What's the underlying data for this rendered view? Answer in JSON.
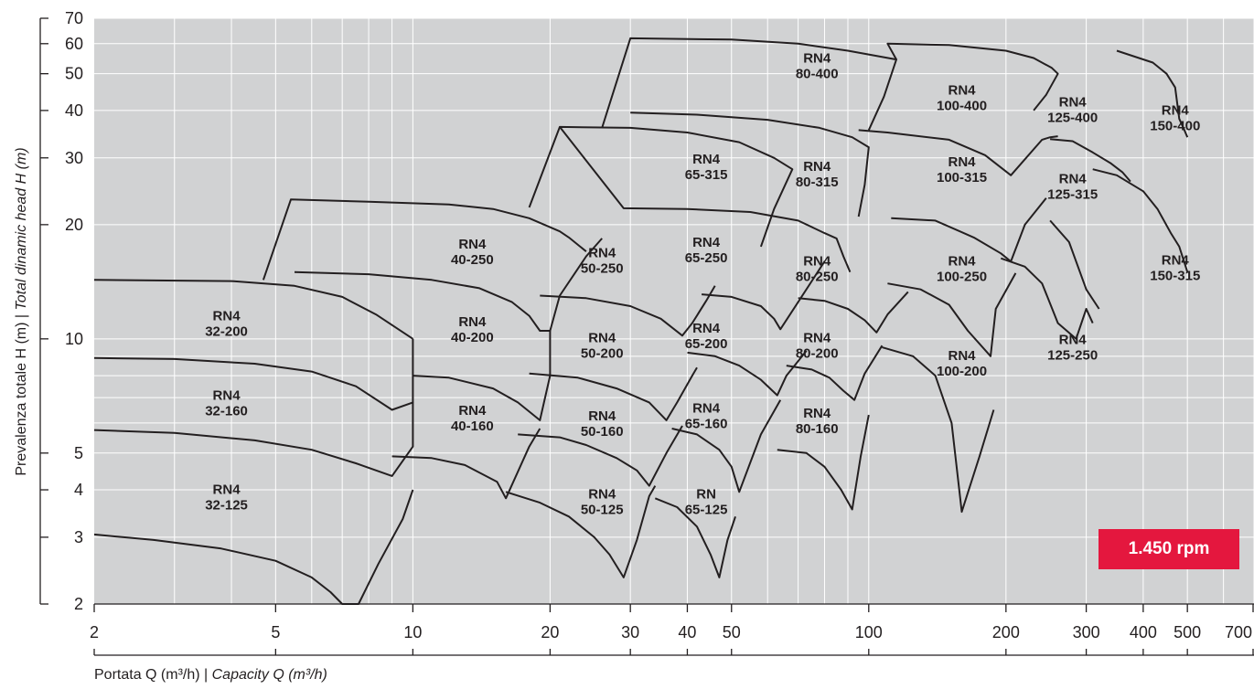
{
  "chart_data": {
    "type": "area",
    "title": "",
    "ylabel_it": "Prevalenza totale H (m)",
    "ylabel_en": "Total dinamic head H (m)",
    "xlabel_it": "Portata Q (m³/h)",
    "xlabel_en": "Capacity Q (m³/h)",
    "xscale": "log",
    "yscale": "log",
    "xlim": [
      2,
      700
    ],
    "ylim": [
      2,
      70
    ],
    "xticks": [
      2,
      5,
      10,
      20,
      30,
      40,
      50,
      100,
      200,
      300,
      400,
      500,
      700
    ],
    "yticks": [
      2,
      3,
      4,
      5,
      10,
      20,
      30,
      40,
      50,
      60,
      70
    ],
    "grid": true,
    "speed_label": "1.450 rpm",
    "regions": [
      {
        "name": "RN4\n32-125",
        "label_at": [
          3.9,
          3.9
        ],
        "outline": [
          [
            2,
            3.05
          ],
          [
            2.7,
            2.95
          ],
          [
            3.8,
            2.8
          ],
          [
            5,
            2.6
          ],
          [
            6,
            2.35
          ],
          [
            6.6,
            2.15
          ],
          [
            7,
            2
          ],
          [
            7.6,
            2
          ],
          [
            8.4,
            2.55
          ],
          [
            9.5,
            3.35
          ],
          [
            10,
            4
          ]
        ]
      },
      {
        "name": "RN4\n32-160",
        "label_at": [
          3.9,
          6.9
        ],
        "outline": [
          [
            2,
            5.75
          ],
          [
            3,
            5.65
          ],
          [
            4.5,
            5.4
          ],
          [
            6,
            5.1
          ],
          [
            7.5,
            4.7
          ],
          [
            9,
            4.35
          ],
          [
            10,
            5.2
          ],
          [
            10,
            6.8
          ]
        ]
      },
      {
        "name": "RN4\n32-200",
        "label_at": [
          3.9,
          11.2
        ],
        "outline": [
          [
            2,
            8.9
          ],
          [
            3,
            8.85
          ],
          [
            4.5,
            8.6
          ],
          [
            6,
            8.2
          ],
          [
            7.5,
            7.5
          ],
          [
            9,
            6.5
          ],
          [
            10,
            6.8
          ],
          [
            10,
            10
          ]
        ]
      },
      {
        "name": "",
        "label_at": [
          0,
          0
        ],
        "outline": [
          [
            2,
            14.3
          ],
          [
            4,
            14.2
          ],
          [
            5.5,
            13.8
          ],
          [
            7,
            12.9
          ],
          [
            8.3,
            11.6
          ],
          [
            10,
            10
          ]
        ]
      },
      {
        "name": "RN4\n40-160",
        "label_at": [
          13.5,
          6.3
        ],
        "outline": [
          [
            9,
            4.9
          ],
          [
            11,
            4.85
          ],
          [
            13,
            4.65
          ],
          [
            15.3,
            4.2
          ],
          [
            16,
            3.8
          ],
          [
            18,
            5.2
          ],
          [
            19,
            5.8
          ]
        ]
      },
      {
        "name": "RN4\n40-200",
        "label_at": [
          13.5,
          10.8
        ],
        "outline": [
          [
            10,
            8
          ],
          [
            12,
            7.9
          ],
          [
            15,
            7.4
          ],
          [
            17,
            6.8
          ],
          [
            19,
            6.1
          ],
          [
            20,
            8
          ],
          [
            20,
            10.5
          ]
        ]
      },
      {
        "name": "RN4\n40-250",
        "label_at": [
          13.5,
          17.3
        ],
        "outline": [
          [
            5.5,
            15
          ],
          [
            8,
            14.8
          ],
          [
            11,
            14.3
          ],
          [
            14,
            13.6
          ],
          [
            16.5,
            12.5
          ],
          [
            18,
            11.5
          ],
          [
            19,
            10.5
          ],
          [
            20,
            10.5
          ],
          [
            21,
            13
          ],
          [
            24,
            16.5
          ],
          [
            26,
            18.4
          ]
        ]
      },
      {
        "name": "",
        "label_at": [
          0,
          0
        ],
        "outline": [
          [
            4.7,
            14.3
          ],
          [
            5.4,
            23.3
          ],
          [
            8,
            23
          ],
          [
            12,
            22.6
          ],
          [
            15,
            22
          ],
          [
            18,
            20.8
          ],
          [
            21,
            19.2
          ],
          [
            22,
            18.5
          ],
          [
            24,
            17
          ]
        ]
      },
      {
        "name": "RN4\n50-125",
        "label_at": [
          26,
          3.8
        ],
        "outline": [
          [
            16,
            3.95
          ],
          [
            19,
            3.7
          ],
          [
            22,
            3.4
          ],
          [
            25,
            3
          ],
          [
            27,
            2.7
          ],
          [
            29,
            2.35
          ],
          [
            31,
            2.95
          ],
          [
            33,
            3.85
          ],
          [
            34,
            4.1
          ]
        ]
      },
      {
        "name": "RN4\n50-160",
        "label_at": [
          26,
          6.1
        ],
        "outline": [
          [
            17,
            5.6
          ],
          [
            21,
            5.5
          ],
          [
            24,
            5.25
          ],
          [
            28,
            4.85
          ],
          [
            31,
            4.5
          ],
          [
            33,
            4.1
          ],
          [
            36,
            5
          ],
          [
            39,
            5.9
          ]
        ]
      },
      {
        "name": "RN4\n50-200",
        "label_at": [
          26,
          9.8
        ],
        "outline": [
          [
            18,
            8.1
          ],
          [
            23,
            7.9
          ],
          [
            28,
            7.4
          ],
          [
            33,
            6.8
          ],
          [
            36,
            6.1
          ],
          [
            38,
            6.8
          ],
          [
            41,
            8
          ],
          [
            42,
            8.4
          ]
        ]
      },
      {
        "name": "RN4\n50-250",
        "label_at": [
          26,
          16.4
        ],
        "outline": [
          [
            19,
            13
          ],
          [
            24,
            12.8
          ],
          [
            30,
            12.2
          ],
          [
            35,
            11.3
          ],
          [
            39,
            10.2
          ],
          [
            41,
            11
          ],
          [
            44,
            12.6
          ],
          [
            46,
            13.8
          ]
        ]
      },
      {
        "name": "RN\n65-125",
        "label_at": [
          44,
          3.8
        ],
        "outline": [
          [
            34,
            3.8
          ],
          [
            38,
            3.6
          ],
          [
            42,
            3.2
          ],
          [
            45,
            2.7
          ],
          [
            47,
            2.35
          ],
          [
            49,
            2.95
          ],
          [
            51,
            3.4
          ]
        ]
      },
      {
        "name": "RN4\n65-160",
        "label_at": [
          44,
          6.4
        ],
        "outline": [
          [
            37,
            5.8
          ],
          [
            42,
            5.6
          ],
          [
            47,
            5.1
          ],
          [
            50,
            4.6
          ],
          [
            52,
            3.95
          ],
          [
            58,
            5.6
          ],
          [
            64,
            6.9
          ]
        ]
      },
      {
        "name": "RN4\n65-200",
        "label_at": [
          44,
          10.4
        ],
        "outline": [
          [
            40,
            9.2
          ],
          [
            46,
            9
          ],
          [
            52,
            8.5
          ],
          [
            58,
            7.8
          ],
          [
            63,
            7.1
          ],
          [
            66,
            8
          ],
          [
            73,
            9.3
          ]
        ]
      },
      {
        "name": "RN4\n65-250",
        "label_at": [
          44,
          17.5
        ],
        "outline": [
          [
            43,
            13.1
          ],
          [
            50,
            12.9
          ],
          [
            58,
            12.2
          ],
          [
            62,
            11.3
          ],
          [
            64,
            10.6
          ],
          [
            70,
            12.5
          ],
          [
            80,
            16
          ]
        ]
      },
      {
        "name": "RN4\n65-315",
        "label_at": [
          44,
          29
        ],
        "outline": [
          [
            18,
            22.2
          ],
          [
            21,
            36.2
          ],
          [
            30,
            36
          ],
          [
            40,
            35
          ],
          [
            52,
            33
          ],
          [
            62,
            30
          ],
          [
            68,
            28
          ],
          [
            62,
            22
          ],
          [
            58,
            17.5
          ]
        ]
      },
      {
        "name": "",
        "label_at": [
          0,
          0
        ],
        "outline": [
          [
            21,
            36.2
          ],
          [
            29,
            22.1
          ],
          [
            40,
            22
          ],
          [
            55,
            21.6
          ],
          [
            70,
            20.5
          ],
          [
            80,
            19
          ],
          [
            85,
            18.4
          ],
          [
            88,
            16.5
          ],
          [
            91,
            15
          ]
        ]
      },
      {
        "name": "RN4\n80-160",
        "label_at": [
          77,
          6.2
        ],
        "outline": [
          [
            63,
            5.1
          ],
          [
            73,
            5
          ],
          [
            80,
            4.6
          ],
          [
            87,
            4
          ],
          [
            92,
            3.55
          ],
          [
            96,
            4.9
          ],
          [
            100,
            6.3
          ]
        ]
      },
      {
        "name": "RN4\n80-200",
        "label_at": [
          77,
          9.8
        ],
        "outline": [
          [
            66,
            8.5
          ],
          [
            75,
            8.3
          ],
          [
            82,
            7.9
          ],
          [
            88,
            7.3
          ],
          [
            93,
            6.9
          ],
          [
            98,
            8.1
          ],
          [
            107,
            9.6
          ]
        ]
      },
      {
        "name": "RN4\n80-250",
        "label_at": [
          77,
          15.6
        ],
        "outline": [
          [
            70,
            12.8
          ],
          [
            80,
            12.6
          ],
          [
            90,
            12
          ],
          [
            98,
            11.2
          ],
          [
            104,
            10.4
          ],
          [
            110,
            11.6
          ],
          [
            122,
            13.3
          ]
        ]
      },
      {
        "name": "RN4\n80-315",
        "label_at": [
          77,
          27.7
        ],
        "outline": [
          [
            30,
            39.5
          ],
          [
            42,
            39
          ],
          [
            60,
            37.8
          ],
          [
            78,
            36
          ],
          [
            92,
            34
          ],
          [
            100,
            32
          ],
          [
            98,
            25.5
          ],
          [
            95,
            21
          ]
        ]
      },
      {
        "name": "RN4\n80-400",
        "label_at": [
          77,
          53.5
        ],
        "outline": [
          [
            26,
            36
          ],
          [
            30,
            62
          ],
          [
            50,
            61.5
          ],
          [
            70,
            60
          ],
          [
            90,
            57.5
          ],
          [
            115,
            54.5
          ],
          [
            108,
            43.5
          ],
          [
            100,
            35.5
          ]
        ]
      },
      {
        "name": "RN4\n100-200",
        "label_at": [
          160,
          8.8
        ],
        "outline": [
          [
            107,
            9.5
          ],
          [
            125,
            9
          ],
          [
            140,
            8
          ],
          [
            152,
            6
          ],
          [
            160,
            3.5
          ],
          [
            175,
            4.9
          ],
          [
            188,
            6.5
          ]
        ]
      },
      {
        "name": "RN4\n100-250",
        "label_at": [
          160,
          15.6
        ],
        "outline": [
          [
            110,
            14
          ],
          [
            130,
            13.5
          ],
          [
            150,
            12.3
          ],
          [
            165,
            10.5
          ],
          [
            185,
            9
          ],
          [
            190,
            12
          ],
          [
            210,
            14.9
          ]
        ]
      },
      {
        "name": "RN4\n100-315",
        "label_at": [
          160,
          28.5
        ],
        "outline": [
          [
            112,
            20.8
          ],
          [
            140,
            20.5
          ],
          [
            170,
            18.5
          ],
          [
            195,
            16.8
          ],
          [
            205,
            16
          ],
          [
            220,
            20
          ],
          [
            245,
            23.5
          ]
        ]
      },
      {
        "name": "RN4\n100-400",
        "label_at": [
          160,
          44
        ],
        "outline": [
          [
            95,
            35.5
          ],
          [
            110,
            35
          ],
          [
            150,
            33.5
          ],
          [
            180,
            30.5
          ],
          [
            205,
            27
          ],
          [
            240,
            33.5
          ],
          [
            250,
            34
          ],
          [
            260,
            34.2
          ]
        ]
      },
      {
        "name": "",
        "label_at": [
          0,
          0
        ],
        "outline": [
          [
            115,
            54.5
          ],
          [
            110,
            60
          ],
          [
            150,
            59.5
          ],
          [
            200,
            57.5
          ],
          [
            230,
            55
          ],
          [
            252,
            51.8
          ],
          [
            260,
            50
          ],
          [
            245,
            44
          ],
          [
            230,
            40
          ]
        ]
      },
      {
        "name": "RN4\n125-250",
        "label_at": [
          280,
          9.7
        ],
        "outline": [
          [
            195,
            16.3
          ],
          [
            220,
            15.5
          ],
          [
            240,
            14
          ],
          [
            260,
            11
          ],
          [
            285,
            10
          ],
          [
            300,
            12
          ],
          [
            310,
            11
          ]
        ]
      },
      {
        "name": "RN4\n125-315",
        "label_at": [
          280,
          25.7
        ],
        "outline": [
          [
            250,
            20.5
          ],
          [
            275,
            18
          ],
          [
            300,
            13.5
          ],
          [
            320,
            12
          ]
        ]
      },
      {
        "name": "RN4\n125-400",
        "label_at": [
          280,
          41
        ],
        "outline": [
          [
            250,
            33.6
          ],
          [
            280,
            33.2
          ],
          [
            310,
            31
          ],
          [
            340,
            29
          ],
          [
            360,
            27.5
          ],
          [
            375,
            26
          ]
        ]
      },
      {
        "name": "RN4\n150-315",
        "label_at": [
          470,
          15.7
        ],
        "outline": [
          [
            310,
            28
          ],
          [
            350,
            27
          ],
          [
            400,
            24.5
          ],
          [
            430,
            22
          ],
          [
            460,
            19
          ],
          [
            480,
            17.5
          ],
          [
            500,
            15
          ]
        ]
      },
      {
        "name": "RN4\n150-400",
        "label_at": [
          470,
          39
        ],
        "outline": [
          [
            350,
            57.5
          ],
          [
            420,
            53.5
          ],
          [
            450,
            50
          ],
          [
            470,
            46
          ],
          [
            480,
            38
          ],
          [
            490,
            36
          ],
          [
            500,
            34
          ]
        ]
      }
    ]
  }
}
